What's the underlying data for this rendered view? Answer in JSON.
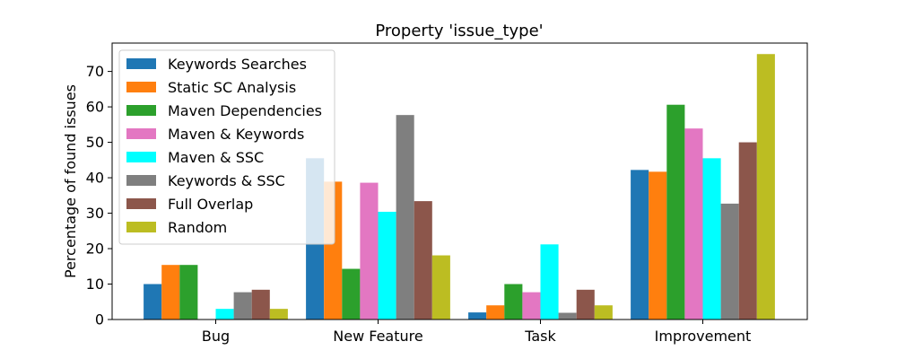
{
  "chart_data": {
    "type": "bar",
    "title": "Property 'issue_type'",
    "xlabel": "",
    "ylabel": "Percentage of found issues",
    "ylim": [
      0,
      78
    ],
    "yticks": [
      0,
      10,
      20,
      30,
      40,
      50,
      60,
      70
    ],
    "categories": [
      "Bug",
      "New Feature",
      "Task",
      "Improvement"
    ],
    "legend_position": "top-left",
    "grid": false,
    "series": [
      {
        "name": "Keywords Searches",
        "color": "#1f77b4",
        "values": [
          10,
          45.5,
          2,
          42.2
        ]
      },
      {
        "name": "Static SC Analysis",
        "color": "#ff7f0e",
        "values": [
          15.4,
          38.9,
          4,
          41.7
        ]
      },
      {
        "name": "Maven Dependencies",
        "color": "#2ca02c",
        "values": [
          15.4,
          14.3,
          10,
          60.6
        ]
      },
      {
        "name": "Maven & Keywords",
        "color": "#e377c2",
        "values": [
          0,
          38.6,
          7.7,
          53.9
        ]
      },
      {
        "name": "Maven & SSC",
        "color": "#00ffff",
        "values": [
          3,
          30.4,
          21.2,
          45.5
        ]
      },
      {
        "name": "Keywords & SSC",
        "color": "#7f7f7f",
        "values": [
          7.7,
          57.7,
          1.9,
          32.7
        ]
      },
      {
        "name": "Full Overlap",
        "color": "#8c564b",
        "values": [
          8.4,
          33.4,
          8.4,
          50
        ]
      },
      {
        "name": "Random",
        "color": "#bcbd22",
        "values": [
          3,
          18.1,
          4,
          74.9
        ]
      }
    ]
  }
}
